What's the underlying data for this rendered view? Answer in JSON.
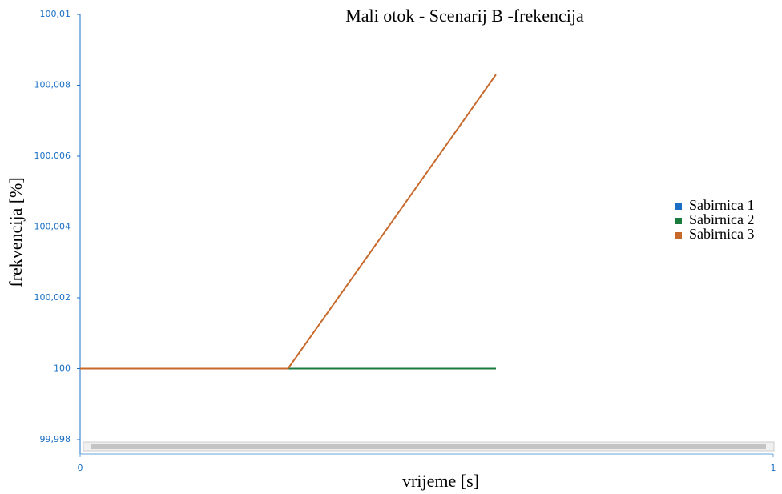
{
  "chart_data": {
    "type": "line",
    "title": "Mali otok - Scenarij B -frekencija",
    "xlabel": "vrijeme [s]",
    "ylabel": "frekvencija [%]",
    "x": [
      0,
      0.3,
      0.6
    ],
    "series": [
      {
        "name": "Sabirnica 1",
        "color": "#1a6fc4",
        "values": [
          100,
          100,
          100
        ]
      },
      {
        "name": "Sabirnica 2",
        "color": "#1b7a3e",
        "values": [
          100,
          100,
          100
        ]
      },
      {
        "name": "Sabirnica 3",
        "color": "#c8692c",
        "values": [
          100,
          100,
          100.0083
        ]
      }
    ],
    "xlim": [
      0,
      1
    ],
    "xticks": [
      0,
      1
    ],
    "ylim": [
      99.998,
      100.01
    ],
    "yticks": [
      {
        "value": 99.998,
        "label": "99,998"
      },
      100,
      {
        "value": 100.002,
        "label": "100,002"
      },
      {
        "value": 100.004,
        "label": "100,004"
      },
      {
        "value": 100.006,
        "label": "100,006"
      },
      {
        "value": 100.008,
        "label": "100,008"
      },
      {
        "value": 100.01,
        "label": "100,01"
      }
    ],
    "legend": "right"
  }
}
